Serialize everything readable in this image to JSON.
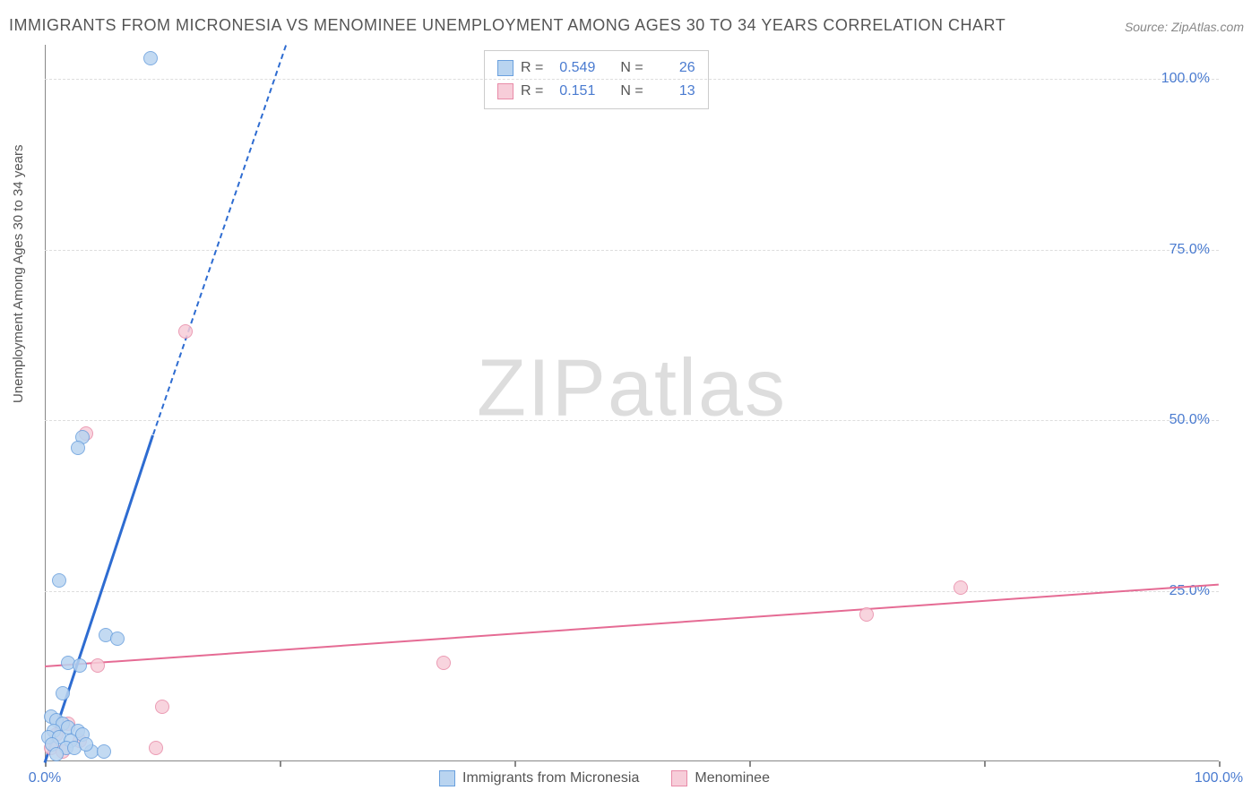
{
  "title": "IMMIGRANTS FROM MICRONESIA VS MENOMINEE UNEMPLOYMENT AMONG AGES 30 TO 34 YEARS CORRELATION CHART",
  "source": "Source: ZipAtlas.com",
  "ylabel": "Unemployment Among Ages 30 to 34 years",
  "watermark_a": "ZIP",
  "watermark_b": "atlas",
  "chart": {
    "type": "scatter",
    "xlim": [
      0,
      100
    ],
    "ylim": [
      0,
      105
    ],
    "x_ticks": [
      0,
      20,
      40,
      60,
      80,
      100
    ],
    "x_tick_labels": {
      "0": "0.0%",
      "100": "100.0%"
    },
    "y_gridlines": [
      25,
      50,
      75,
      100
    ],
    "y_tick_labels": {
      "25": "25.0%",
      "50": "50.0%",
      "75": "75.0%",
      "100": "100.0%"
    },
    "grid_color": "#dddddd",
    "axis_color": "#888888",
    "label_color": "#4a7bd0",
    "title_color": "#555555",
    "background_color": "#ffffff"
  },
  "series": {
    "A": {
      "name": "Immigrants from Micronesia",
      "fill": "#b9d4f0",
      "stroke": "#6aa0de",
      "line_color": "#2e6cd1",
      "r_label": "R =",
      "r_value": "0.549",
      "n_label": "N =",
      "n_value": "26",
      "marker_radius": 8,
      "trend": {
        "x1": 0,
        "y1": 0,
        "x2_solid": 9.2,
        "y2_solid": 48,
        "x2_dash": 20.5,
        "y2_dash": 105
      },
      "points": [
        {
          "x": 9.0,
          "y": 103.0
        },
        {
          "x": 3.2,
          "y": 47.5
        },
        {
          "x": 2.8,
          "y": 46.0
        },
        {
          "x": 1.2,
          "y": 26.5
        },
        {
          "x": 5.2,
          "y": 18.5
        },
        {
          "x": 6.2,
          "y": 18.0
        },
        {
          "x": 2.0,
          "y": 14.5
        },
        {
          "x": 3.0,
          "y": 14.0
        },
        {
          "x": 1.5,
          "y": 10.0
        },
        {
          "x": 0.5,
          "y": 6.5
        },
        {
          "x": 1.0,
          "y": 6.0
        },
        {
          "x": 1.5,
          "y": 5.5
        },
        {
          "x": 2.0,
          "y": 5.0
        },
        {
          "x": 0.8,
          "y": 4.5
        },
        {
          "x": 2.8,
          "y": 4.5
        },
        {
          "x": 3.2,
          "y": 4.0
        },
        {
          "x": 0.3,
          "y": 3.5
        },
        {
          "x": 1.2,
          "y": 3.5
        },
        {
          "x": 2.2,
          "y": 3.0
        },
        {
          "x": 4.0,
          "y": 1.5
        },
        {
          "x": 1.8,
          "y": 2.0
        },
        {
          "x": 0.6,
          "y": 2.5
        },
        {
          "x": 2.5,
          "y": 2.0
        },
        {
          "x": 3.5,
          "y": 2.5
        },
        {
          "x": 1.0,
          "y": 1.0
        },
        {
          "x": 5.0,
          "y": 1.5
        }
      ]
    },
    "B": {
      "name": "Menominee",
      "fill": "#f7cdd9",
      "stroke": "#e88ba8",
      "line_color": "#e56b94",
      "r_label": "R =",
      "r_value": "0.151",
      "n_label": "N =",
      "n_value": "13",
      "marker_radius": 8,
      "trend": {
        "x1": 0,
        "y1": 14.0,
        "x2": 100,
        "y2": 26.0
      },
      "points": [
        {
          "x": 12.0,
          "y": 63.0
        },
        {
          "x": 3.5,
          "y": 48.0
        },
        {
          "x": 78.0,
          "y": 25.5
        },
        {
          "x": 70.0,
          "y": 21.5
        },
        {
          "x": 34.0,
          "y": 14.5
        },
        {
          "x": 4.5,
          "y": 14.0
        },
        {
          "x": 10.0,
          "y": 8.0
        },
        {
          "x": 9.5,
          "y": 2.0
        },
        {
          "x": 3.0,
          "y": 3.0
        },
        {
          "x": 1.0,
          "y": 4.0
        },
        {
          "x": 2.0,
          "y": 5.5
        },
        {
          "x": 0.5,
          "y": 2.0
        },
        {
          "x": 1.5,
          "y": 1.5
        }
      ]
    }
  }
}
